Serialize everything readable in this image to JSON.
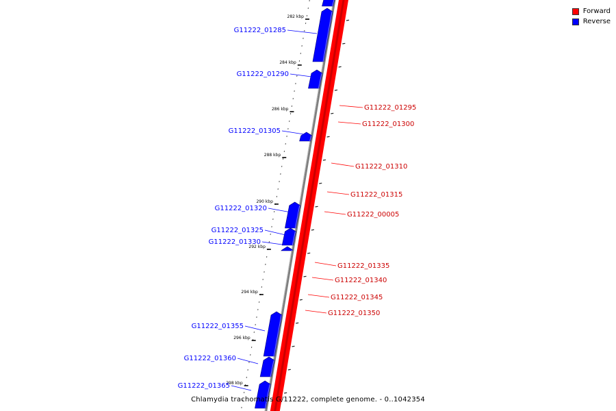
{
  "colors": {
    "forward": "#ff0000",
    "reverse": "#0000ff",
    "backbone": "#808080"
  },
  "legend": {
    "forward_label": "Forward",
    "reverse_label": "Reverse"
  },
  "caption": "Chlamydia trachomatis G/11222, complete genome. - 0..1042354",
  "ticks": [
    "282 kbp",
    "284 kbp",
    "286 kbp",
    "288 kbp",
    "290 kbp",
    "292 kbp",
    "294 kbp",
    "296 kbp",
    "298 kbp"
  ],
  "reverse_genes": [
    "G11222_01285",
    "G11222_01290",
    "G11222_01305",
    "G11222_01320",
    "G11222_01325",
    "G11222_01330",
    "G11222_01355",
    "G11222_01360",
    "G11222_01365"
  ],
  "forward_genes": [
    "G11222_01295",
    "G11222_01300",
    "G11222_01310",
    "G11222_01315",
    "G11222_00005",
    "G11222_01335",
    "G11222_01340",
    "G11222_01345",
    "G11222_01350"
  ]
}
